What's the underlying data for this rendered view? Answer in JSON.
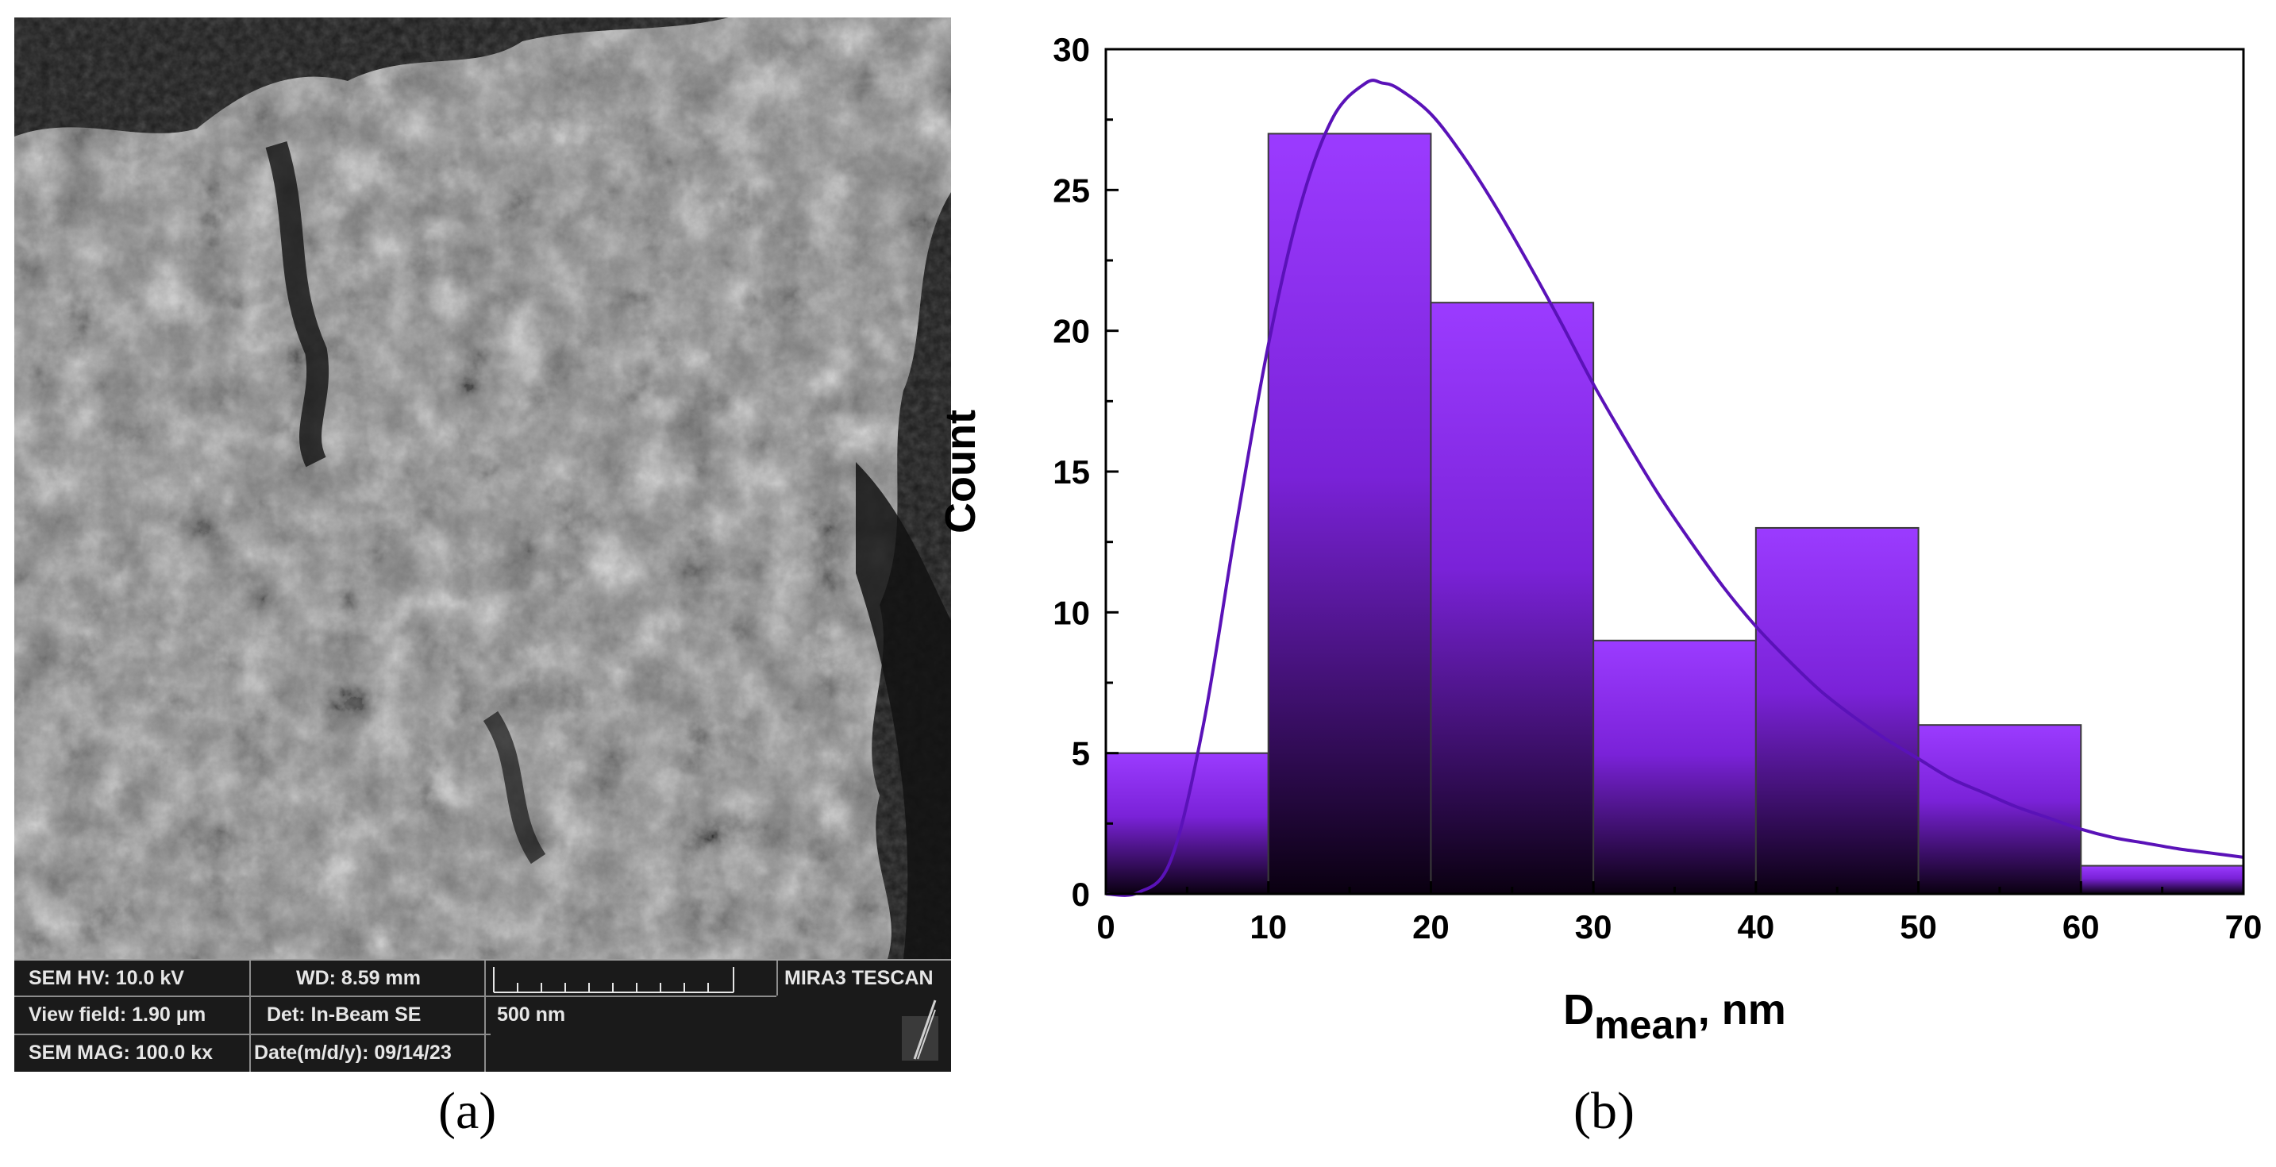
{
  "panel_a": {
    "label": "(a)",
    "info_bar": {
      "sem_hv": "SEM HV: 10.0 kV",
      "wd": "WD: 8.59 mm",
      "brand": "MIRA3 TESCAN",
      "view_field": "View field: 1.90 μm",
      "detector": "Det: In-Beam SE",
      "scale_label": "500 nm",
      "sem_mag": "SEM MAG: 100.0 kx",
      "date": "Date(m/d/y): 09/14/23"
    }
  },
  "panel_b": {
    "label": "(b)"
  },
  "colors": {
    "bar_top": "#9b3bff",
    "bar_bottom": "#0a0010",
    "curve": "#5a12b8",
    "sem_bar_bg": "#1a1a1a"
  },
  "chart_data": {
    "type": "bar",
    "subtype": "histogram",
    "bins": [
      [
        0,
        10
      ],
      [
        10,
        20
      ],
      [
        20,
        30
      ],
      [
        30,
        40
      ],
      [
        40,
        50
      ],
      [
        50,
        60
      ],
      [
        60,
        70
      ]
    ],
    "values": [
      5,
      27,
      21,
      9,
      13,
      6,
      1
    ],
    "fit_curve": {
      "type": "lognormal",
      "points": [
        [
          0,
          0
        ],
        [
          2,
          0.05
        ],
        [
          4,
          1.2
        ],
        [
          6,
          6.0
        ],
        [
          8,
          13.0
        ],
        [
          10,
          19.5
        ],
        [
          12,
          24.5
        ],
        [
          14,
          27.6
        ],
        [
          16,
          28.8
        ],
        [
          17,
          28.8
        ],
        [
          18,
          28.6
        ],
        [
          20,
          27.7
        ],
        [
          22,
          26.2
        ],
        [
          24,
          24.4
        ],
        [
          26,
          22.4
        ],
        [
          28,
          20.3
        ],
        [
          30,
          18.1
        ],
        [
          32,
          16.1
        ],
        [
          34,
          14.2
        ],
        [
          36,
          12.5
        ],
        [
          38,
          10.9
        ],
        [
          40,
          9.5
        ],
        [
          42,
          8.3
        ],
        [
          44,
          7.2
        ],
        [
          46,
          6.3
        ],
        [
          48,
          5.5
        ],
        [
          50,
          4.8
        ],
        [
          52,
          4.1
        ],
        [
          54,
          3.6
        ],
        [
          56,
          3.1
        ],
        [
          58,
          2.7
        ],
        [
          60,
          2.3
        ],
        [
          62,
          2.0
        ],
        [
          64,
          1.8
        ],
        [
          66,
          1.6
        ],
        [
          68,
          1.45
        ],
        [
          70,
          1.3
        ]
      ]
    },
    "xlabel_main": "D",
    "xlabel_sub": "mean",
    "xlabel_suffix": ", nm",
    "ylabel": "Count",
    "xlim": [
      0,
      70
    ],
    "ylim": [
      0,
      30
    ],
    "x_ticks": [
      "0",
      "10",
      "20",
      "30",
      "40",
      "50",
      "60",
      "70"
    ],
    "y_ticks": [
      "0",
      "5",
      "10",
      "15",
      "20",
      "25",
      "30"
    ],
    "grid": false
  }
}
